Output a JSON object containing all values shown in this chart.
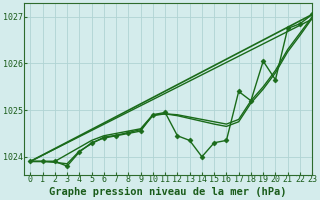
{
  "xlabel": "Graphe pression niveau de la mer (hPa)",
  "xlim": [
    -0.5,
    23
  ],
  "ylim": [
    1023.6,
    1027.3
  ],
  "yticks": [
    1024,
    1025,
    1026,
    1027
  ],
  "xticks": [
    0,
    1,
    2,
    3,
    4,
    5,
    6,
    7,
    8,
    9,
    10,
    11,
    12,
    13,
    14,
    15,
    16,
    17,
    18,
    19,
    20,
    21,
    22,
    23
  ],
  "bg_color": "#d4ecec",
  "grid_color": "#b0d4d4",
  "line_color": "#1a6b1a",
  "lines": [
    {
      "x": [
        0,
        1,
        2,
        3,
        4,
        5,
        6,
        7,
        8,
        9,
        10,
        11,
        12,
        13,
        14,
        15,
        16,
        17,
        18,
        19,
        20,
        21,
        22,
        23
      ],
      "y": [
        1023.9,
        1023.9,
        1023.9,
        1023.8,
        1024.1,
        1024.3,
        1024.4,
        1024.45,
        1024.5,
        1024.55,
        1024.9,
        1024.95,
        1024.45,
        1024.35,
        1024.0,
        1024.3,
        1024.35,
        1025.4,
        1025.2,
        1026.05,
        1025.65,
        1026.75,
        1026.85,
        1027.05
      ],
      "marker": "D",
      "markersize": 2.5,
      "linewidth": 1.0,
      "zorder": 4
    },
    {
      "x": [
        0,
        23
      ],
      "y": [
        1023.9,
        1027.05
      ],
      "marker": null,
      "markersize": 0,
      "linewidth": 1.2,
      "zorder": 2
    },
    {
      "x": [
        0,
        23
      ],
      "y": [
        1023.9,
        1026.95
      ],
      "marker": null,
      "markersize": 0,
      "linewidth": 1.0,
      "zorder": 2
    },
    {
      "x": [
        0,
        1,
        2,
        3,
        4,
        5,
        6,
        7,
        8,
        9,
        10,
        11,
        12,
        13,
        14,
        15,
        16,
        17,
        18,
        19,
        20,
        21,
        22,
        23
      ],
      "y": [
        1023.9,
        1023.9,
        1023.9,
        1024.05,
        1024.2,
        1024.35,
        1024.45,
        1024.5,
        1024.55,
        1024.6,
        1024.9,
        1024.92,
        1024.9,
        1024.85,
        1024.8,
        1024.75,
        1024.7,
        1024.8,
        1025.2,
        1025.5,
        1025.85,
        1026.3,
        1026.65,
        1027.0
      ],
      "marker": null,
      "markersize": 0,
      "linewidth": 1.0,
      "zorder": 3
    },
    {
      "x": [
        0,
        1,
        2,
        3,
        4,
        5,
        6,
        7,
        8,
        9,
        10,
        11,
        12,
        13,
        14,
        15,
        16,
        17,
        18,
        19,
        20,
        21,
        22,
        23
      ],
      "y": [
        1023.9,
        1023.9,
        1023.88,
        1023.85,
        1024.12,
        1024.28,
        1024.42,
        1024.46,
        1024.52,
        1024.58,
        1024.88,
        1024.92,
        1024.88,
        1024.82,
        1024.76,
        1024.7,
        1024.65,
        1024.75,
        1025.15,
        1025.45,
        1025.8,
        1026.25,
        1026.6,
        1026.97
      ],
      "marker": null,
      "markersize": 0,
      "linewidth": 1.0,
      "zorder": 3
    }
  ],
  "tick_fontsize": 6,
  "label_fontsize": 7.5,
  "label_bold": true
}
